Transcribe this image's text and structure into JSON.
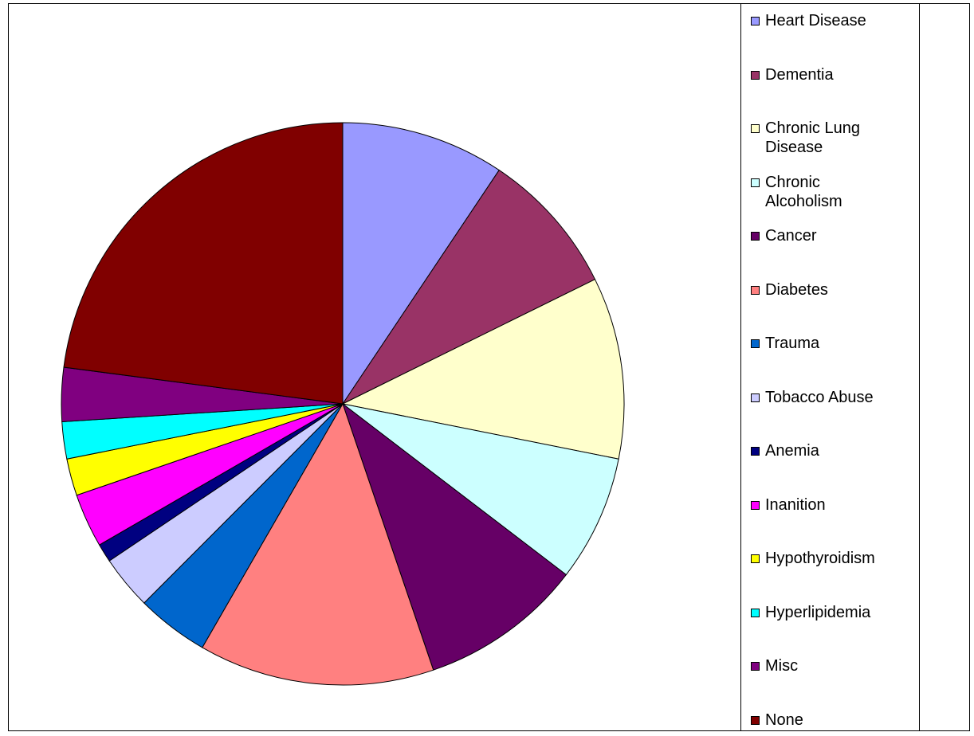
{
  "chart_data": {
    "type": "pie",
    "legend_position": "right",
    "start_angle_deg": 0,
    "direction": "clockwise",
    "slices": [
      {
        "label": "Heart Disease",
        "value": 9.7,
        "color": "#9999FF"
      },
      {
        "label": "Dementia",
        "value": 8.6,
        "color": "#993366"
      },
      {
        "label": "Chronic Lung Disease",
        "value": 10.8,
        "color": "#FFFFCC"
      },
      {
        "label": "Chronic Alcoholism",
        "value": 7.5,
        "color": "#CCFFFF"
      },
      {
        "label": "Cancer",
        "value": 9.7,
        "color": "#660066"
      },
      {
        "label": "Diabetes",
        "value": 14.0,
        "color": "#FF8080"
      },
      {
        "label": "Trauma",
        "value": 4.3,
        "color": "#0066CC"
      },
      {
        "label": "Tobacco Abuse",
        "value": 3.2,
        "color": "#CCCCFF"
      },
      {
        "label": "Anemia",
        "value": 1.1,
        "color": "#000080"
      },
      {
        "label": "Inanition",
        "value": 3.2,
        "color": "#FF00FF"
      },
      {
        "label": "Hypothyroidism",
        "value": 2.2,
        "color": "#FFFF00"
      },
      {
        "label": "Hyperlipidemia",
        "value": 2.2,
        "color": "#00FFFF"
      },
      {
        "label": "Misc",
        "value": 3.2,
        "color": "#800080"
      },
      {
        "label": "None",
        "value": 23.7,
        "color": "#800000"
      }
    ]
  }
}
